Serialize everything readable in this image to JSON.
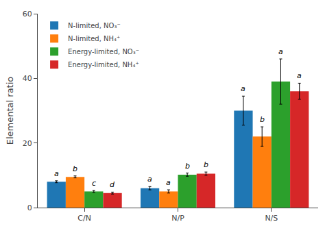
{
  "chart_data": {
    "type": "bar",
    "categories": [
      "C/N",
      "N/P",
      "N/S"
    ],
    "series": [
      {
        "name": "N-limited, NO₃⁻",
        "values": [
          8.0,
          6.0,
          30.0
        ],
        "errors": [
          0.3,
          0.5,
          4.5
        ],
        "annotations": [
          "a",
          "a",
          "a"
        ]
      },
      {
        "name": "N-limited, NH₄⁺",
        "values": [
          9.5,
          5.0,
          22.0
        ],
        "errors": [
          0.3,
          0.5,
          3.0
        ],
        "annotations": [
          "b",
          "a",
          "b"
        ]
      },
      {
        "name": "Energy-limited, NO₃⁻",
        "values": [
          5.0,
          10.2,
          39.0
        ],
        "errors": [
          0.3,
          0.5,
          7.0
        ],
        "annotations": [
          "c",
          "b",
          "a"
        ]
      },
      {
        "name": "Energy-limited, NH₄⁺",
        "values": [
          4.5,
          10.5,
          36.0
        ],
        "errors": [
          0.3,
          0.5,
          2.5
        ],
        "annotations": [
          "d",
          "b",
          "a"
        ]
      }
    ],
    "ylabel": "Elemental ratio",
    "ylim": [
      0,
      60
    ],
    "yticks": [
      0,
      20,
      40,
      60
    ],
    "grid": false,
    "legend": "upper left"
  }
}
